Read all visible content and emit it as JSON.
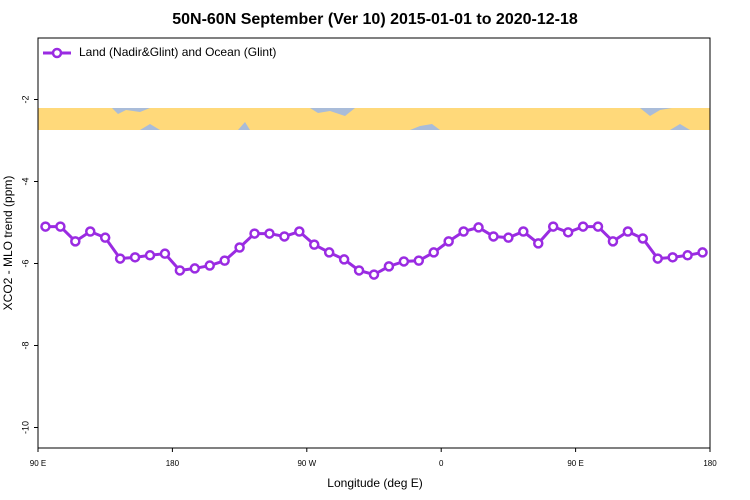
{
  "chart_data": {
    "type": "line",
    "title": "50N-60N September (Ver 10)   2015-01-01 to 2020-12-18",
    "xlabel": "Longitude (deg E)",
    "ylabel": "XCO2 - MLO trend (ppm)",
    "x": [
      95,
      105,
      115,
      125,
      135,
      145,
      155,
      165,
      175,
      185,
      195,
      205,
      215,
      225,
      235,
      245,
      255,
      265,
      275,
      285,
      295,
      305,
      315,
      325,
      335,
      345,
      355,
      365,
      375,
      385,
      395,
      405,
      415,
      425,
      435,
      445,
      455,
      465,
      475,
      485,
      495,
      505,
      515,
      525,
      535
    ],
    "series": [
      {
        "name": "Land (Nadir&Glint) and Ocean (Glint)",
        "color": "#9a2be2",
        "values": [
          -5.1,
          -5.1,
          -5.46,
          -5.22,
          -5.37,
          -5.88,
          -5.85,
          -5.8,
          -5.76,
          -6.17,
          -6.12,
          -6.05,
          -5.93,
          -5.61,
          -5.27,
          -5.27,
          -5.34,
          -5.22,
          -5.54,
          -5.73,
          -5.9,
          -6.17,
          -6.27,
          -6.07,
          -5.95,
          -5.93,
          -5.73,
          -5.46,
          -5.22,
          -5.12,
          -5.34,
          -5.37,
          -5.22,
          -5.51,
          -5.1,
          -5.24,
          -5.1,
          -5.1,
          -5.46,
          -5.22,
          -5.39,
          -5.88,
          -5.85,
          -5.8,
          -5.73
        ]
      }
    ],
    "xlim": [
      90,
      540
    ],
    "xticks": [
      {
        "value": 90,
        "label": "90 E"
      },
      180,
      {
        "value": 270,
        "label": "90 W"
      },
      {
        "value": 360,
        "label": "0"
      },
      {
        "value": 450,
        "label": "90 E"
      },
      {
        "value": 540,
        "label": "180"
      }
    ],
    "ylim": [
      -10.5,
      -0.5
    ],
    "yticks": [
      -2,
      -4,
      -6,
      -8,
      -10
    ],
    "legend": "upper left"
  }
}
